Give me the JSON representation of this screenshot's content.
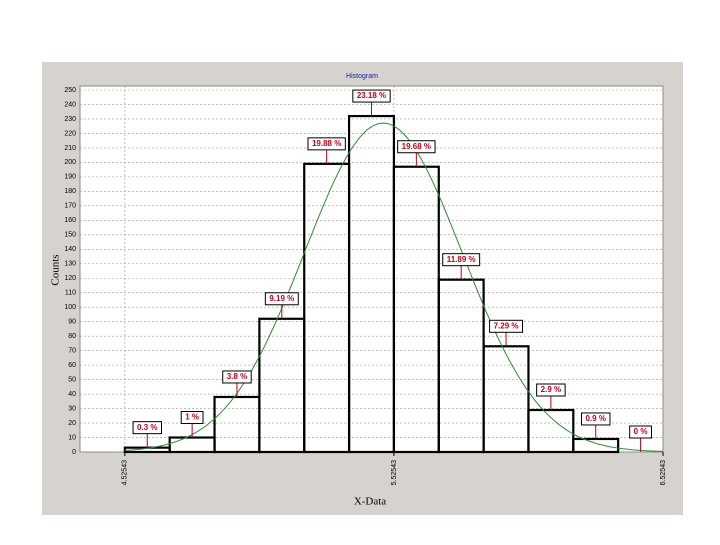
{
  "chart_data": {
    "type": "histogram",
    "title": "Histogram",
    "x_label": "X-Data",
    "y_label": "Counts",
    "bins": [
      4.52543,
      4.6921,
      4.85876,
      5.02543,
      5.1921,
      5.35876,
      5.52543,
      5.6921,
      5.85876,
      6.02543,
      6.1921,
      6.35876,
      6.52543
    ],
    "values": [
      3,
      10,
      38,
      92,
      199,
      232,
      197,
      119,
      73,
      29,
      9,
      0
    ],
    "percent": {
      "values": [
        0.3,
        1,
        3.8,
        9.19,
        19.88,
        23.18,
        19.68,
        11.89,
        7.29,
        2.9,
        0.9,
        0
      ],
      "value_labels": [
        "0.3 %",
        "1 %",
        "3.8 %",
        "9.19 %",
        "19.88 %",
        "23.18 %",
        "19.68 %",
        "11.89 %",
        "7.29 %",
        "2.9 %",
        "0.9 %",
        "0 %"
      ]
    },
    "color": "#000000",
    "fit_color": "#2e8b2e",
    "xlim": [
      4.35876,
      6.52543
    ],
    "xticks": [
      4.52543,
      5.52543,
      6.52543
    ],
    "ylim": [
      0,
      250
    ],
    "yticks": [
      0,
      10,
      20,
      30,
      40,
      50,
      60,
      70,
      80,
      90,
      100,
      110,
      120,
      130,
      140,
      150,
      160,
      170,
      180,
      190,
      200,
      210,
      220,
      230,
      240,
      250
    ],
    "grid": true,
    "fit_curve": true
  }
}
